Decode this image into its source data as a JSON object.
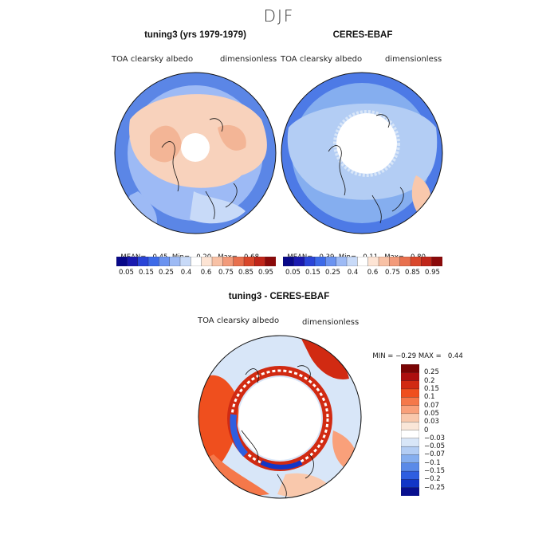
{
  "season": "DJF",
  "panels": [
    {
      "title": "tuning3 (yrs 1979-1979)",
      "variable": "TOA clearsky albedo",
      "units": "dimensionless",
      "stats": {
        "mean_label": "MEAN=",
        "mean": "0.45",
        "min_label": "Min=",
        "min": "0.20",
        "max_label": "Max=",
        "max": "0.68"
      }
    },
    {
      "title": "CERES-EBAF",
      "variable": "TOA clearsky albedo",
      "units": "dimensionless",
      "stats": {
        "mean_label": "MEAN=",
        "mean": "0.39",
        "min_label": "Min=",
        "min": "0.11",
        "max_label": "Max=",
        "max": "0.80"
      }
    },
    {
      "title": "tuning3 - CERES-EBAF",
      "variable": "TOA clearsky albedo",
      "units": "dimensionless",
      "stats": {
        "min_label": "MIN =",
        "min": "−0.29",
        "max_label": "MAX =",
        "max": "0.44"
      }
    }
  ],
  "colorbar_top": {
    "labels": [
      "0.05",
      "0.15",
      "0.25",
      "0.4",
      "0.6",
      "0.75",
      "0.85",
      "0.95"
    ],
    "colors": [
      "#08088a",
      "#1a1ab0",
      "#2a45d8",
      "#3d6ae8",
      "#6b93f0",
      "#9dbaf5",
      "#c8daf8",
      "#ffffff",
      "#fde4d4",
      "#f8c1a5",
      "#f29a7a",
      "#e8704e",
      "#d9472b",
      "#c0261a",
      "#8b0a0a"
    ]
  },
  "colorbar_diff": {
    "labels": [
      "0.25",
      "0.2",
      "0.15",
      "0.1",
      "0.07",
      "0.05",
      "0.03",
      "0",
      "−0.03",
      "−0.05",
      "−0.07",
      "−0.1",
      "−0.15",
      "−0.2",
      "−0.25"
    ],
    "colors": [
      "#7a0404",
      "#ad0f0f",
      "#d12a12",
      "#ef4f1e",
      "#f5784a",
      "#f9a07a",
      "#f9c8ac",
      "#fae6d8",
      "#ffffff",
      "#d8e6f8",
      "#b3cdf4",
      "#85aeef",
      "#5a8ae8",
      "#2e5ee0",
      "#1236c7",
      "#08108f"
    ]
  },
  "chart_data": [
    {
      "type": "heatmap",
      "projection": "north-polar-stereographic",
      "title": "tuning3 (yrs 1979-1979)",
      "variable": "TOA clearsky albedo",
      "units": "dimensionless",
      "mean": 0.45,
      "min": 0.2,
      "max": 0.68,
      "levels": [
        0.05,
        0.15,
        0.25,
        0.4,
        0.6,
        0.75,
        0.85,
        0.95
      ]
    },
    {
      "type": "heatmap",
      "projection": "north-polar-stereographic",
      "title": "CERES-EBAF",
      "variable": "TOA clearsky albedo",
      "units": "dimensionless",
      "mean": 0.39,
      "min": 0.11,
      "max": 0.8,
      "levels": [
        0.05,
        0.15,
        0.25,
        0.4,
        0.6,
        0.75,
        0.85,
        0.95
      ]
    },
    {
      "type": "heatmap",
      "projection": "north-polar-stereographic",
      "title": "tuning3 - CERES-EBAF",
      "variable": "TOA clearsky albedo",
      "units": "dimensionless",
      "min": -0.29,
      "max": 0.44,
      "levels": [
        -0.25,
        -0.2,
        -0.15,
        -0.1,
        -0.07,
        -0.05,
        -0.03,
        0,
        0.03,
        0.05,
        0.07,
        0.1,
        0.15,
        0.2,
        0.25
      ]
    }
  ]
}
